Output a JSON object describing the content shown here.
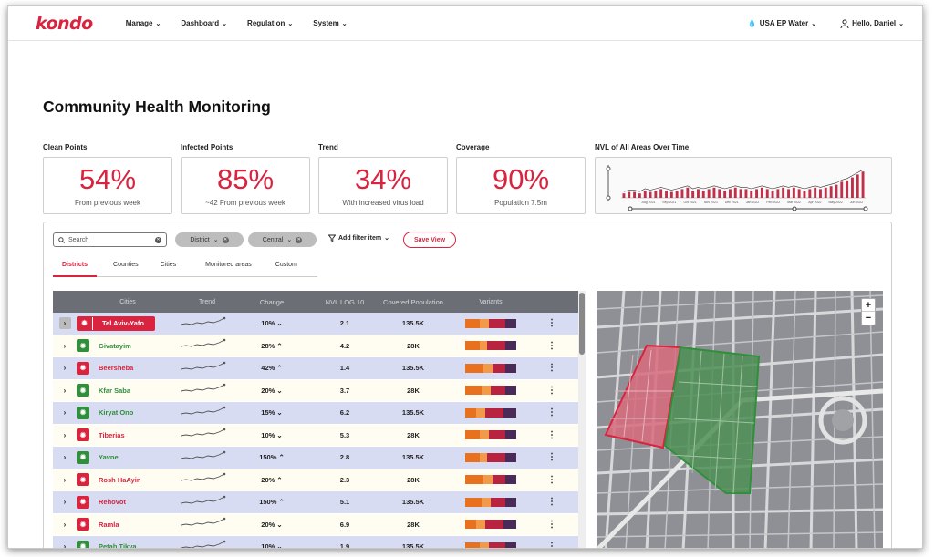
{
  "brand": {
    "logo": "kondo",
    "accent": "#d9233f",
    "green": "#2f8f3a"
  },
  "nav": {
    "items": [
      {
        "label": "Manage"
      },
      {
        "label": "Dashboard"
      },
      {
        "label": "Regulation"
      },
      {
        "label": "System"
      }
    ],
    "site": "USA EP Water",
    "user": "Hello, Daniel"
  },
  "page": {
    "title": "Community Health Monitoring"
  },
  "kpis": [
    {
      "label": "Clean Points",
      "value": "54%",
      "sub": "From previous week"
    },
    {
      "label": "Infected Points",
      "value": "85%",
      "sub": "~42 From previous week"
    },
    {
      "label": "Trend",
      "value": "34%",
      "sub": "With increased virus load"
    },
    {
      "label": "Coverage",
      "value": "90%",
      "sub": "Population 7.5m"
    }
  ],
  "nvl_chart": {
    "title": "NVL of All Areas Over Time",
    "bar_values": [
      3,
      4,
      4,
      3,
      5,
      4,
      5,
      6,
      5,
      4,
      5,
      6,
      7,
      5,
      6,
      5,
      6,
      7,
      6,
      5,
      6,
      7,
      6,
      6,
      5,
      6,
      7,
      6,
      5,
      6,
      7,
      6,
      7,
      6,
      5,
      6,
      7,
      6,
      7,
      8,
      9,
      11,
      12,
      14,
      16,
      18
    ],
    "x_ticks": [
      "Aug 2021",
      "Sep 2021",
      "Oct 2021",
      "Nov 2021",
      "Dec 2021",
      "Jan 2022",
      "Feb 2022",
      "Mar 2022",
      "Apr 2022",
      "May 2022",
      "Jun 2022"
    ]
  },
  "toolbar": {
    "search_placeholder": "Search",
    "chips": [
      "District",
      "Central"
    ],
    "add_filter": "Add filter item",
    "save_view": "Save View"
  },
  "tabs": [
    "Districts",
    "Counties",
    "Cities",
    "Monitored areas",
    "Custom"
  ],
  "table": {
    "headers": [
      "Cities",
      "Trend",
      "Change",
      "NVL LOG 10",
      "Covered Population",
      "Variants"
    ],
    "rows": [
      {
        "city": "Tel Aviv-Yafo",
        "status": "red",
        "change": "10%",
        "arrow": "⌄",
        "nvl": "2.1",
        "pop": "135.5K"
      },
      {
        "city": "Givatayim",
        "status": "green",
        "change": "28%",
        "arrow": "⌃",
        "nvl": "4.2",
        "pop": "28K"
      },
      {
        "city": "Beersheba",
        "status": "red",
        "change": "42%",
        "arrow": "⌃",
        "nvl": "1.4",
        "pop": "135.5K"
      },
      {
        "city": "Kfar Saba",
        "status": "green",
        "change": "20%",
        "arrow": "⌄",
        "nvl": "3.7",
        "pop": "28K"
      },
      {
        "city": "Kiryat Ono",
        "status": "green",
        "change": "15%",
        "arrow": "⌄",
        "nvl": "6.2",
        "pop": "135.5K"
      },
      {
        "city": "Tiberias",
        "status": "red",
        "change": "10%",
        "arrow": "⌄",
        "nvl": "5.3",
        "pop": "28K"
      },
      {
        "city": "Yavne",
        "status": "green",
        "change": "150%",
        "arrow": "⌃",
        "nvl": "2.8",
        "pop": "135.5K"
      },
      {
        "city": "Rosh HaAyin",
        "status": "red",
        "change": "20%",
        "arrow": "⌃",
        "nvl": "2.3",
        "pop": "28K"
      },
      {
        "city": "Rehovot",
        "status": "red",
        "change": "150%",
        "arrow": "⌃",
        "nvl": "5.1",
        "pop": "135.5K"
      },
      {
        "city": "Ramla",
        "status": "red",
        "change": "20%",
        "arrow": "⌄",
        "nvl": "6.9",
        "pop": "28K"
      },
      {
        "city": "Petah Tikva",
        "status": "green",
        "change": "10%",
        "arrow": "⌄",
        "nvl": "1.9",
        "pop": "135.5K"
      }
    ]
  },
  "variant_colors": [
    "#e8711f",
    "#f2994a",
    "#b8243f",
    "#4a2a57"
  ],
  "map": {
    "zoom_in": "+",
    "zoom_out": "−"
  }
}
